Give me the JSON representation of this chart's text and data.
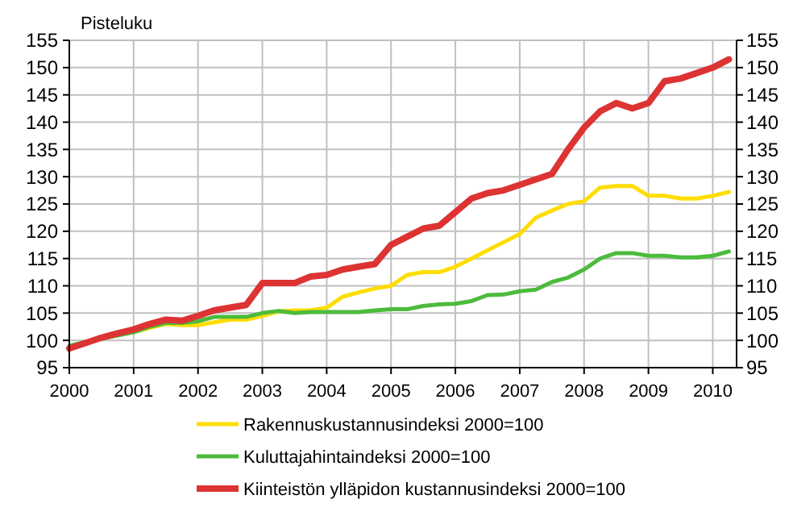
{
  "chart_data": {
    "type": "line",
    "ylabel": "Pisteluku",
    "xlim": [
      2000,
      2010.37
    ],
    "xticks": [
      2000,
      2001,
      2002,
      2003,
      2004,
      2005,
      2006,
      2007,
      2008,
      2009,
      2010
    ],
    "ylim": [
      95,
      155
    ],
    "yticks": [
      95,
      100,
      105,
      110,
      115,
      120,
      125,
      130,
      135,
      140,
      145,
      150,
      155
    ],
    "y2lim": [
      95,
      155
    ],
    "y2ticks": [
      95,
      100,
      105,
      110,
      115,
      120,
      125,
      130,
      135,
      140,
      145,
      150,
      155
    ],
    "grid": true,
    "legend": "bottom",
    "marker": "none",
    "line_style": "solid",
    "x": [
      2000,
      2000.25,
      2000.5,
      2000.75,
      2001,
      2001.25,
      2001.5,
      2001.75,
      2002,
      2002.25,
      2002.5,
      2002.75,
      2003,
      2003.25,
      2003.5,
      2003.75,
      2004,
      2004.25,
      2004.5,
      2004.75,
      2005,
      2005.25,
      2005.5,
      2005.75,
      2006,
      2006.25,
      2006.5,
      2006.75,
      2007,
      2007.25,
      2007.5,
      2007.75,
      2008,
      2008.25,
      2008.5,
      2008.75,
      2009,
      2009.25,
      2009.5,
      2009.75,
      2010,
      2010.25
    ],
    "series": [
      {
        "name": "Rakennuskustannusindeksi 2000=100",
        "color": "#ffdd00",
        "values": [
          null,
          null,
          null,
          101,
          101.5,
          102.3,
          103,
          102.8,
          102.8,
          103.3,
          103.8,
          103.8,
          104.5,
          105.3,
          105.5,
          105.5,
          106,
          108,
          108.8,
          109.5,
          110,
          112,
          112.5,
          112.5,
          113.5,
          115,
          116.5,
          118,
          119.5,
          122.5,
          123.8,
          125,
          125.5,
          128,
          128.3,
          128.3,
          126.5,
          126.5,
          126,
          126,
          126.5,
          127.2
        ]
      },
      {
        "name": "Kuluttajahintaindeksi 2000=100",
        "color": "#4cbb3c",
        "values": [
          99,
          99.7,
          100.3,
          100.9,
          101.5,
          102.5,
          103.2,
          103.2,
          103.5,
          104.3,
          104.3,
          104.3,
          105,
          105.4,
          105,
          105.2,
          105.2,
          105.2,
          105.2,
          105.5,
          105.7,
          105.7,
          106.3,
          106.6,
          106.7,
          107.2,
          108.3,
          108.4,
          109,
          109.3,
          110.7,
          111.5,
          113,
          115,
          116,
          116,
          115.5,
          115.5,
          115.2,
          115.2,
          115.5,
          116.3
        ]
      },
      {
        "name": "Kiinteistön ylläpidon kustannusindeksi 2000=100",
        "color": "#dd3333",
        "values": [
          98.5,
          99.5,
          100.5,
          101.3,
          102,
          103,
          103.8,
          103.6,
          104.5,
          105.5,
          106,
          106.5,
          110.5,
          110.5,
          110.5,
          111.7,
          112,
          113,
          113.5,
          114,
          117.5,
          119,
          120.5,
          121,
          123.5,
          126,
          127,
          127.5,
          128.5,
          129.5,
          130.5,
          135,
          139,
          142,
          143.5,
          142.5,
          143.5,
          147.5,
          148,
          149,
          150,
          151.5
        ]
      }
    ]
  }
}
